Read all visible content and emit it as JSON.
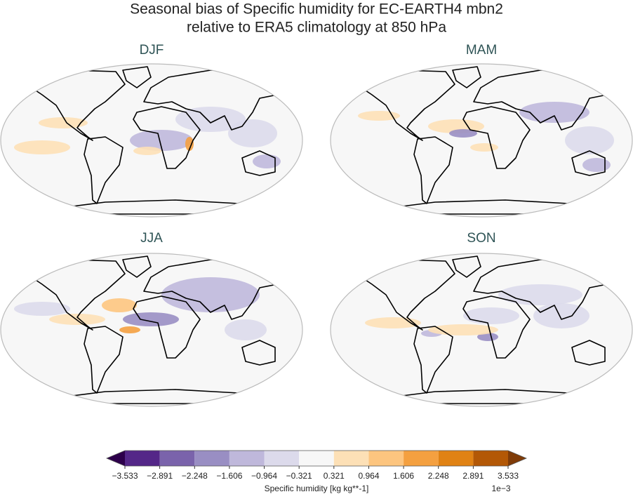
{
  "title": [
    "Seasonal bias of Specific humidity for EC-EARTH4 mbn2",
    "relative to ERA5 climatology at 850 hPa"
  ],
  "panels": [
    {
      "title": "DJF"
    },
    {
      "title": "MAM"
    },
    {
      "title": "JJA"
    },
    {
      "title": "SON"
    }
  ],
  "colorbar": {
    "ticks": [
      {
        "value": -3.533,
        "label": "−3.533"
      },
      {
        "value": -2.891,
        "label": "−2.891"
      },
      {
        "value": -2.248,
        "label": "−2.248"
      },
      {
        "value": -1.606,
        "label": "−1.606"
      },
      {
        "value": -0.964,
        "label": "−0.964"
      },
      {
        "value": -0.321,
        "label": "−0.321"
      },
      0.321,
      0.964,
      1.606,
      2.248,
      2.891,
      3.533
    ],
    "colors": [
      "#542788",
      "#7a63ab",
      "#998ec3",
      "#bfb8db",
      "#dcdaeb",
      "#f7f7f7",
      "#fde0b6",
      "#fdc57f",
      "#f4a040",
      "#e08214",
      "#b35806"
    ],
    "extend_colors": [
      "#2d004b",
      "#7f3b08"
    ],
    "label": "Specific humidity [kg kg**-1]",
    "offset_label": "1e−3"
  }
}
